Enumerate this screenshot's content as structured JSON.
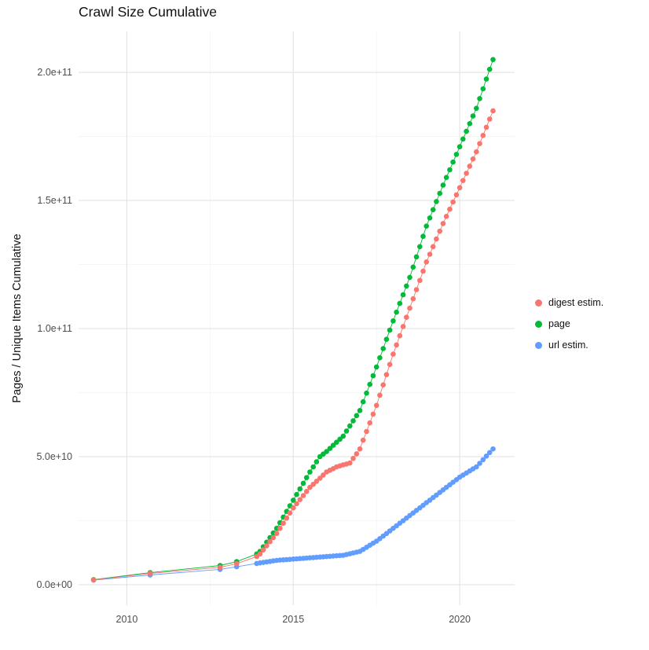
{
  "chart_data": {
    "type": "scatter",
    "title": "Crawl Size Cumulative",
    "xlabel": "",
    "ylabel": "Pages / Unique Items Cumulative",
    "legend_position": "right",
    "grid": true,
    "xlim": [
      2008.55,
      2021.65
    ],
    "ylim_1e9": [
      -8,
      216
    ],
    "y_unit": "1e9",
    "x_ticks": [
      2010,
      2015,
      2020
    ],
    "x_tick_labels": [
      "2010",
      "2015",
      "2020"
    ],
    "x_minor": [
      2012.5,
      2017.5
    ],
    "y_ticks_1e9": [
      0,
      50,
      100,
      150,
      200
    ],
    "y_tick_labels": [
      "0.0e+00",
      "5.0e+10",
      "1.0e+11",
      "1.5e+11",
      "2.0e+11"
    ],
    "y_minor_1e9": [
      25,
      75,
      125,
      175
    ],
    "x": [
      2009,
      2010.7,
      2012.8,
      2013.3,
      2013.9,
      2014,
      2014.1,
      2014.2,
      2014.3,
      2014.4,
      2014.5,
      2014.6,
      2014.7,
      2014.8,
      2014.9,
      2015,
      2015.1,
      2015.2,
      2015.3,
      2015.4,
      2015.5,
      2015.6,
      2015.7,
      2015.8,
      2015.9,
      2016,
      2016.1,
      2016.2,
      2016.3,
      2016.4,
      2016.5,
      2016.6,
      2016.7,
      2016.8,
      2016.9,
      2017,
      2017.1,
      2017.2,
      2017.3,
      2017.4,
      2017.5,
      2017.6,
      2017.7,
      2017.8,
      2017.9,
      2018,
      2018.1,
      2018.2,
      2018.3,
      2018.4,
      2018.5,
      2018.6,
      2018.7,
      2018.8,
      2018.9,
      2019,
      2019.1,
      2019.2,
      2019.3,
      2019.4,
      2019.5,
      2019.6,
      2019.7,
      2019.8,
      2019.9,
      2020,
      2020.1,
      2020.2,
      2020.3,
      2020.4,
      2020.5,
      2020.6,
      2020.7,
      2020.8,
      2020.9,
      2021
    ],
    "series": [
      {
        "name": "digest estim.",
        "color": "#F8766D",
        "y_1e9": [
          1.9,
          4.4,
          6.8,
          8.2,
          11,
          12,
          13.6,
          15.2,
          16.8,
          18.4,
          20,
          22,
          24,
          26,
          28,
          30,
          31.6,
          33.2,
          34.8,
          36.4,
          38,
          39.2,
          40.4,
          41.6,
          42.8,
          44,
          44.7,
          45.3,
          46,
          46.4,
          46.8,
          47.1,
          47.5,
          49.3,
          51.1,
          53,
          56.4,
          59.8,
          63.2,
          66.6,
          70,
          74,
          78,
          82,
          86,
          90,
          93.6,
          97.2,
          100.8,
          104.4,
          108,
          111.6,
          115.2,
          118.8,
          122.4,
          126,
          129,
          132,
          135,
          138,
          141,
          143.8,
          146.6,
          149.4,
          152.2,
          155,
          157.8,
          160.6,
          163.4,
          166.2,
          169,
          172.2,
          175.4,
          178.6,
          181.8,
          185
        ]
      },
      {
        "name": "page",
        "color": "#00BA38",
        "y_1e9": [
          2,
          4.7,
          7.5,
          9,
          12,
          13,
          14.8,
          16.6,
          18.4,
          20.2,
          22,
          24.2,
          26.4,
          28.6,
          30.8,
          33,
          35.2,
          37.4,
          39.6,
          41.8,
          44,
          46,
          48,
          50,
          51,
          52,
          53.2,
          54.4,
          55.6,
          56.8,
          58,
          60,
          62,
          64,
          66,
          68,
          71.4,
          74.8,
          78.2,
          81.6,
          85,
          88.6,
          92.2,
          95.8,
          99.4,
          103,
          106.4,
          109.8,
          113.2,
          116.6,
          120,
          124,
          128,
          132,
          136,
          140,
          143.2,
          146.4,
          149.6,
          152.8,
          156,
          159,
          162,
          165,
          168,
          171,
          174,
          177,
          180,
          183,
          186,
          189.8,
          193.6,
          197.4,
          201.2,
          205
        ]
      },
      {
        "name": "url estim.",
        "color": "#619CFF",
        "y_1e9": [
          1.8,
          3.8,
          6,
          7,
          8.3,
          8.5,
          8.7,
          8.9,
          9.1,
          9.3,
          9.5,
          9.6,
          9.7,
          9.8,
          9.9,
          10,
          10.1,
          10.2,
          10.3,
          10.4,
          10.5,
          10.6,
          10.7,
          10.8,
          10.9,
          11,
          11.1,
          11.2,
          11.3,
          11.4,
          11.5,
          11.8,
          12.1,
          12.4,
          12.7,
          13,
          13.8,
          14.6,
          15.4,
          16.2,
          17,
          18,
          19,
          20,
          21,
          22,
          23,
          24,
          25,
          26,
          27,
          28,
          29,
          30,
          31,
          32,
          33,
          34,
          35,
          36,
          37,
          38,
          39,
          40,
          41,
          42,
          42.8,
          43.6,
          44.4,
          45.2,
          46,
          47.4,
          48.8,
          50.2,
          51.6,
          53
        ]
      }
    ]
  }
}
